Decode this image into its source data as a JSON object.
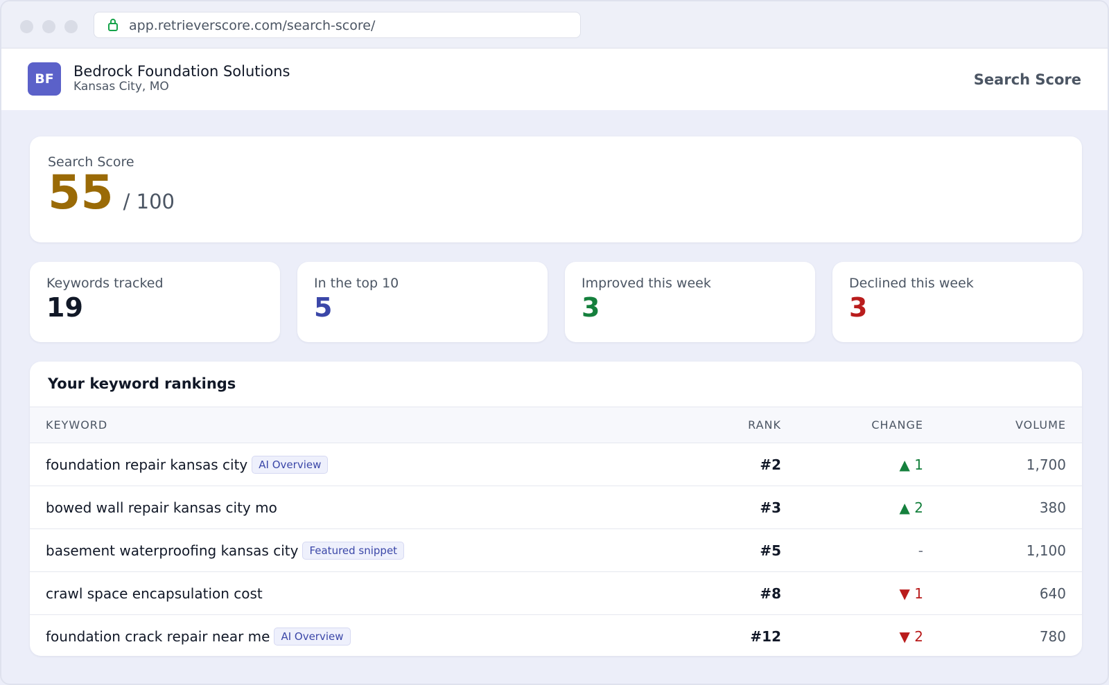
{
  "browser": {
    "url": "app.retrieverscore.com/search-score/"
  },
  "header": {
    "initials": "BF",
    "name": "Bedrock Foundation Solutions",
    "location": "Kansas City, MO",
    "nav": "Search Score"
  },
  "score": {
    "label": "Search Score",
    "value": 55,
    "max": "/ 100"
  },
  "stats": [
    {
      "label": "Keywords tracked",
      "value": 19
    },
    {
      "label": "In the top 10",
      "value": 5
    },
    {
      "label": "Improved this week",
      "value": 3
    },
    {
      "label": "Declined this week",
      "value": 3
    }
  ],
  "table": {
    "title": "Your keyword rankings",
    "columns": [
      "KEYWORD",
      "RANK",
      "CHANGE",
      "VOLUME"
    ],
    "rows": [
      {
        "keyword": "foundation repair kansas city",
        "badge": "AI Overview",
        "rank": "#2",
        "change": "▲ 1",
        "volume": "1,700"
      },
      {
        "keyword": "bowed wall repair kansas city mo",
        "rank": "#3",
        "change": "▲ 2",
        "volume": "380"
      },
      {
        "keyword": "basement waterproofing kansas city",
        "badge": "Featured snippet",
        "rank": "#5",
        "change": "-",
        "volume": "1,100"
      },
      {
        "keyword": "crawl space encapsulation cost",
        "rank": "#8",
        "change": "▼ 1",
        "volume": "640"
      },
      {
        "keyword": "foundation crack repair near me",
        "badge": "AI Overview",
        "rank": "#12",
        "change": "▼ 2",
        "volume": "780"
      }
    ]
  }
}
